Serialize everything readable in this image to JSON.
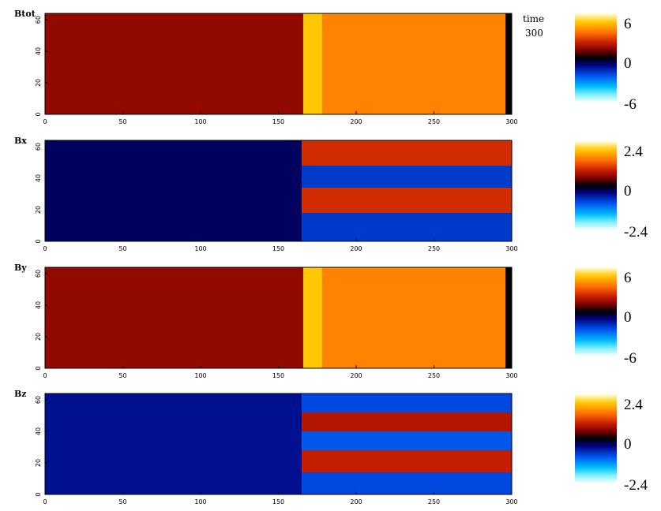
{
  "time_label": "time",
  "time_value": "300",
  "colors": {
    "frame": "#000000",
    "background": "#ffffff"
  },
  "chart_data": [
    {
      "type": "heatmap",
      "title": "Btot",
      "x_ticks": [
        "0",
        "50",
        "100",
        "150",
        "200",
        "250",
        "300"
      ],
      "y_ticks": [
        "0",
        "20",
        "40",
        "60"
      ],
      "xlim": [
        0,
        300
      ],
      "ylim": [
        0,
        64
      ],
      "colorbar": {
        "max": "6",
        "mid": "0",
        "min": "-6"
      },
      "vmin": -6,
      "vmax": 6,
      "regions": [
        {
          "x_from": 0,
          "x_to": 166,
          "value": 1.3
        },
        {
          "x_from": 166,
          "x_to": 178,
          "value": 4.8
        },
        {
          "x_from": 178,
          "x_to": 296,
          "value": 3.7
        },
        {
          "x_from": 296,
          "x_to": 300,
          "value": 0
        }
      ]
    },
    {
      "type": "heatmap",
      "title": "Bx",
      "x_ticks": [
        "0",
        "50",
        "100",
        "150",
        "200",
        "250",
        "300"
      ],
      "y_ticks": [
        "0",
        "20",
        "40",
        "60"
      ],
      "xlim": [
        0,
        300
      ],
      "ylim": [
        0,
        64
      ],
      "colorbar": {
        "max": "2.4",
        "mid": "0",
        "min": "-2.4"
      },
      "vmin": -2.4,
      "vmax": 2.4,
      "regions": [
        {
          "x_from": 0,
          "x_to": 165,
          "value": -0.3
        },
        {
          "x_from": 165,
          "x_to": 300,
          "value": 0,
          "bands": [
            {
              "y_from": 48,
              "y_to": 64,
              "value": 0.9
            },
            {
              "y_from": 34,
              "y_to": 48,
              "value": -0.8
            },
            {
              "y_from": 18,
              "y_to": 34,
              "value": 0.9
            },
            {
              "y_from": 0,
              "y_to": 18,
              "value": -0.8
            }
          ]
        }
      ]
    },
    {
      "type": "heatmap",
      "title": "By",
      "x_ticks": [
        "0",
        "50",
        "100",
        "150",
        "200",
        "250",
        "300"
      ],
      "y_ticks": [
        "0",
        "20",
        "40",
        "60"
      ],
      "xlim": [
        0,
        300
      ],
      "ylim": [
        0,
        64
      ],
      "colorbar": {
        "max": "6",
        "mid": "0",
        "min": "-6"
      },
      "vmin": -6,
      "vmax": 6,
      "regions": [
        {
          "x_from": 0,
          "x_to": 166,
          "value": 1.3
        },
        {
          "x_from": 166,
          "x_to": 178,
          "value": 4.8
        },
        {
          "x_from": 178,
          "x_to": 296,
          "value": 3.7
        },
        {
          "x_from": 296,
          "x_to": 300,
          "value": 0
        }
      ]
    },
    {
      "type": "heatmap",
      "title": "Bz",
      "x_ticks": [
        "0",
        "50",
        "100",
        "150",
        "200",
        "250",
        "300"
      ],
      "y_ticks": [
        "0",
        "20",
        "40",
        "60"
      ],
      "xlim": [
        0,
        300
      ],
      "ylim": [
        0,
        64
      ],
      "colorbar": {
        "max": "2.4",
        "mid": "0",
        "min": "-2.4"
      },
      "vmin": -2.4,
      "vmax": 2.4,
      "regions": [
        {
          "x_from": 0,
          "x_to": 165,
          "value": -0.5
        },
        {
          "x_from": 165,
          "x_to": 300,
          "value": 0,
          "bands": [
            {
              "y_from": 52,
              "y_to": 64,
              "value": -0.9
            },
            {
              "y_from": 40,
              "y_to": 52,
              "value": 0.7
            },
            {
              "y_from": 28,
              "y_to": 40,
              "value": -1.0
            },
            {
              "y_from": 14,
              "y_to": 28,
              "value": 0.8
            },
            {
              "y_from": 0,
              "y_to": 14,
              "value": -0.9
            }
          ]
        }
      ]
    }
  ]
}
